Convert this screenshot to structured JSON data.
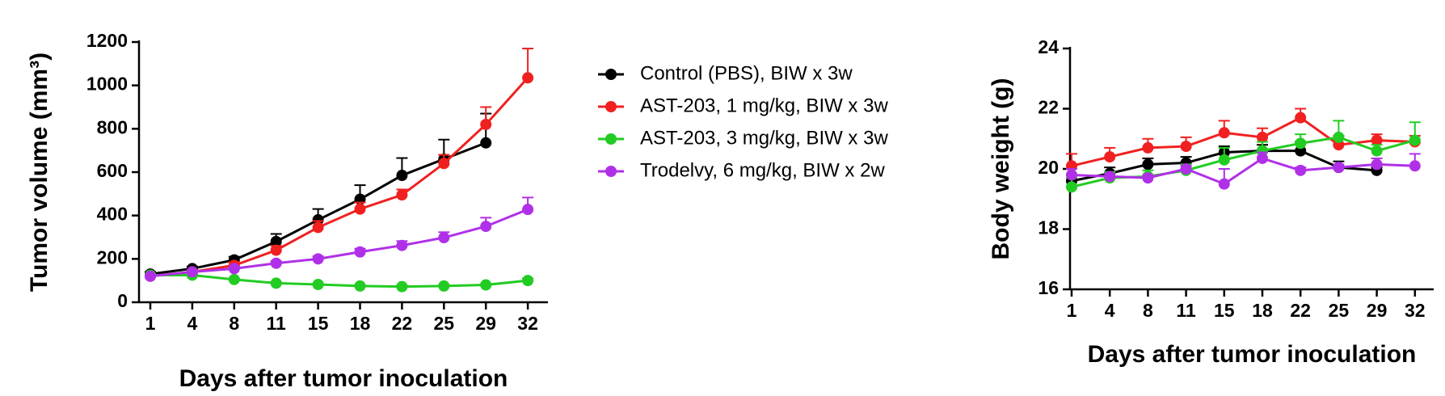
{
  "chart_data": [
    {
      "type": "line",
      "ylabel": "Tumor volume (mm³)",
      "xlabel": "Days after tumor inoculation",
      "categories": [
        1,
        4,
        8,
        11,
        15,
        18,
        22,
        25,
        29,
        32
      ],
      "ylim": [
        0,
        1200
      ],
      "yticks": [
        0,
        200,
        400,
        600,
        800,
        1000,
        1200
      ],
      "series": [
        {
          "name": "Control (PBS), BIW x 3w",
          "color": "#000000",
          "values": [
            130,
            155,
            195,
            280,
            380,
            475,
            585,
            660,
            735,
            null
          ],
          "errors": [
            10,
            10,
            15,
            35,
            50,
            65,
            80,
            90,
            135,
            null
          ]
        },
        {
          "name": "AST-203, 1 mg/kg, BIW x 3w",
          "color": "#f02020",
          "values": [
            120,
            140,
            170,
            240,
            345,
            430,
            495,
            640,
            820,
            1035
          ],
          "errors": [
            10,
            10,
            15,
            20,
            30,
            30,
            25,
            40,
            80,
            135
          ]
        },
        {
          "name": "AST-203, 3 mg/kg, BIW x 3w",
          "color": "#22cc22",
          "values": [
            125,
            125,
            105,
            88,
            82,
            75,
            72,
            75,
            80,
            100
          ],
          "errors": [
            5,
            5,
            5,
            5,
            5,
            5,
            5,
            5,
            5,
            10
          ]
        },
        {
          "name": "Trodelvy, 6 mg/kg, BIW x 2w",
          "color": "#b030e8",
          "values": [
            120,
            140,
            155,
            180,
            200,
            232,
            262,
            298,
            350,
            428
          ],
          "errors": [
            5,
            8,
            10,
            10,
            12,
            15,
            20,
            25,
            40,
            55
          ]
        }
      ]
    },
    {
      "type": "line",
      "ylabel": "Body weight (g)",
      "xlabel": "Days after tumor inoculation",
      "categories": [
        1,
        4,
        8,
        11,
        15,
        18,
        22,
        25,
        29,
        32
      ],
      "ylim": [
        16,
        24
      ],
      "yticks": [
        16,
        18,
        20,
        22,
        24
      ],
      "series": [
        {
          "color": "#000000",
          "values": [
            19.6,
            19.85,
            20.15,
            20.2,
            20.55,
            20.6,
            20.6,
            20.05,
            19.95,
            null
          ],
          "errors": [
            0.2,
            0.2,
            0.2,
            0.2,
            0.2,
            0.2,
            0.3,
            0.2,
            0.1,
            null
          ]
        },
        {
          "color": "#f02020",
          "values": [
            20.1,
            20.4,
            20.7,
            20.75,
            21.2,
            21.05,
            21.7,
            20.8,
            20.95,
            20.9
          ],
          "errors": [
            0.4,
            0.3,
            0.3,
            0.3,
            0.4,
            0.3,
            0.3,
            0.3,
            0.2,
            0.2
          ]
        },
        {
          "color": "#22cc22",
          "values": [
            19.4,
            19.7,
            19.75,
            19.95,
            20.3,
            20.6,
            20.85,
            21.05,
            20.6,
            20.95
          ],
          "errors": [
            0.3,
            0.2,
            0.2,
            0.2,
            0.4,
            0.3,
            0.3,
            0.55,
            0.2,
            0.6
          ]
        },
        {
          "color": "#b030e8",
          "values": [
            19.8,
            19.75,
            19.7,
            20.0,
            19.5,
            20.35,
            19.95,
            20.05,
            20.15,
            20.1
          ],
          "errors": [
            0.2,
            0.1,
            0.1,
            0.1,
            0.5,
            0.2,
            0.1,
            0.1,
            0.2,
            0.4
          ]
        }
      ]
    }
  ]
}
